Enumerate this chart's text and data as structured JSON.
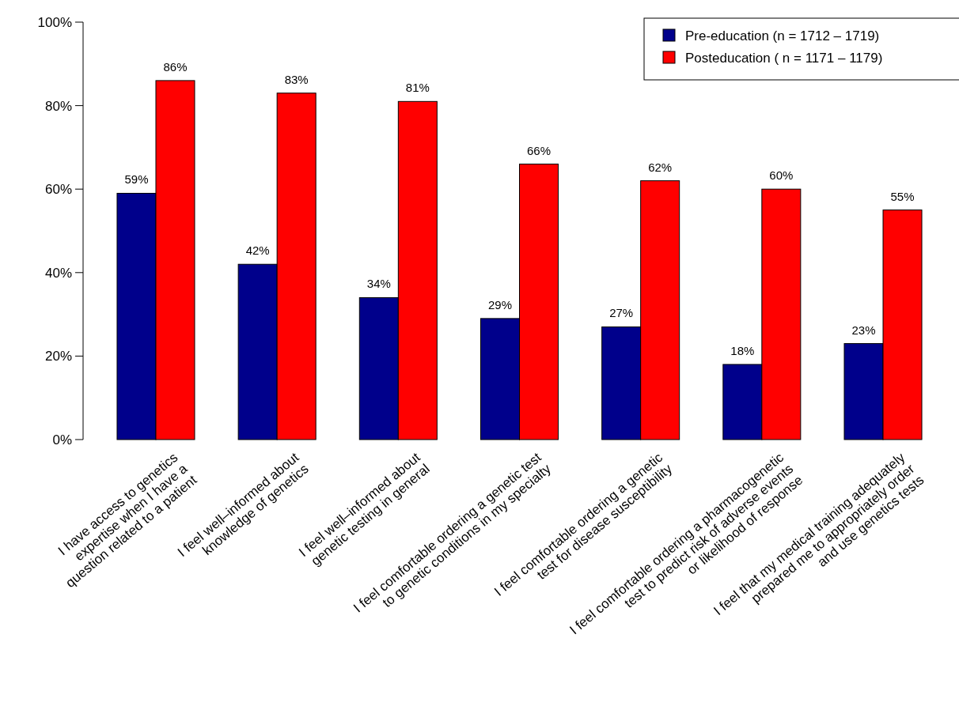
{
  "chart_data": {
    "type": "bar",
    "categories": [
      "I have access to genetics\nexpertise when I have a\nquestion related to a patient",
      "I feel well–informed about\nknowledge of genetics",
      "I feel well–informed about\ngenetic testing in general",
      "I feel comfortable ordering a genetic test\nto genetic conditions in my specialty",
      "I feel comfortable ordering a genetic\ntest for disease susceptibility",
      "I feel comfortable ordering a pharmacogenetic\ntest to predict risk of adverse events\nor likelihood of response",
      "I feel that my medical training adequately\nprepared me to appropriately order\nand use genetics tests"
    ],
    "series": [
      {
        "name": "Pre-education (n = 1712 – 1719)",
        "color": "#00008b",
        "values": [
          59,
          42,
          34,
          29,
          27,
          18,
          23
        ],
        "value_labels": [
          "59%",
          "42%",
          "34%",
          "29%",
          "27%",
          "18%",
          "23%"
        ]
      },
      {
        "name": "Posteducation ( n = 1171 – 1179)",
        "color": "#ff0000",
        "values": [
          86,
          83,
          81,
          66,
          62,
          60,
          55
        ],
        "value_labels": [
          "86%",
          "83%",
          "81%",
          "66%",
          "62%",
          "60%",
          "55%"
        ]
      }
    ],
    "ylim": [
      0,
      100
    ],
    "yticks": [
      {
        "value": 0,
        "label": "0%"
      },
      {
        "value": 20,
        "label": "20%"
      },
      {
        "value": 40,
        "label": "40%"
      },
      {
        "value": 60,
        "label": "60%"
      },
      {
        "value": 80,
        "label": "80%"
      },
      {
        "value": 100,
        "label": "100%"
      }
    ],
    "grid": false,
    "legend": "top right"
  }
}
